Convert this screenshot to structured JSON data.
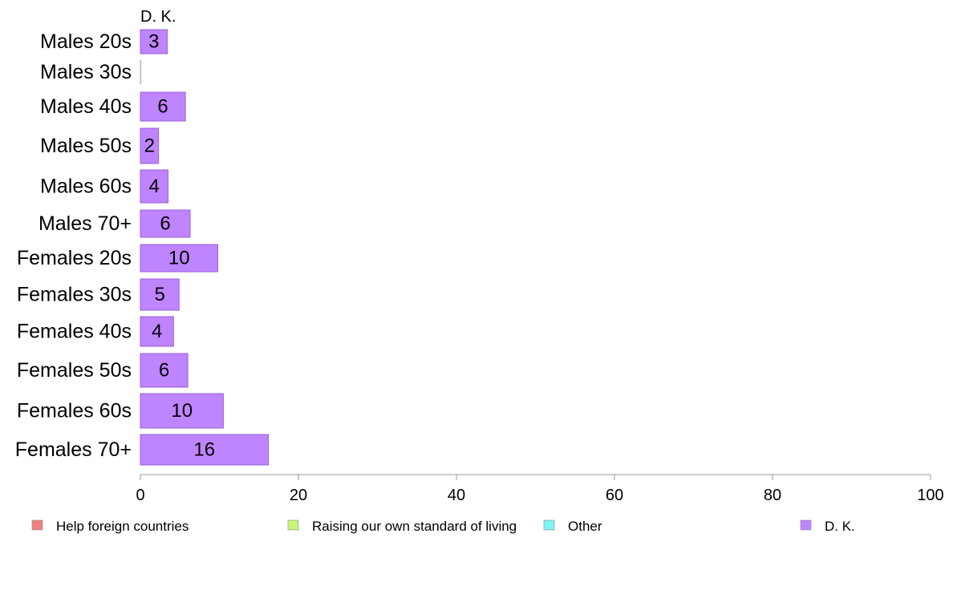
{
  "chart_data": {
    "type": "bar",
    "orientation": "horizontal",
    "panel_title": "D. K.",
    "categories": [
      "Males 20s",
      "Males 30s",
      "Males 40s",
      "Males 50s",
      "Males 60s",
      "Males 70+",
      "Females 20s",
      "Females 30s",
      "Females 40s",
      "Females 50s",
      "Females 60s",
      "Females 70+"
    ],
    "series": [
      {
        "name": "D. K.",
        "values": [
          3.4,
          0,
          5.7,
          2.3,
          3.5,
          6.3,
          9.8,
          4.9,
          4.2,
          6.0,
          10.5,
          16.2
        ],
        "labels": [
          "3",
          "",
          "6",
          "2",
          "4",
          "6",
          "10",
          "5",
          "4",
          "6",
          "10",
          "16"
        ]
      }
    ],
    "xlim": [
      0,
      100
    ],
    "xticks": [
      0,
      20,
      40,
      60,
      80,
      100
    ],
    "grid": false,
    "legend_position": "bottom",
    "legend": [
      {
        "name": "Help foreign countries",
        "color": "#f08080"
      },
      {
        "name": "Raising our own standard of living",
        "color": "#c8f57a"
      },
      {
        "name": "Other",
        "color": "#7ff5f5"
      },
      {
        "name": "D. K.",
        "color": "#bf84ff"
      }
    ],
    "colors": {
      "bar_fill": "#bf84ff",
      "bar_stroke": "#9a62d8",
      "axis": "#999999"
    }
  }
}
